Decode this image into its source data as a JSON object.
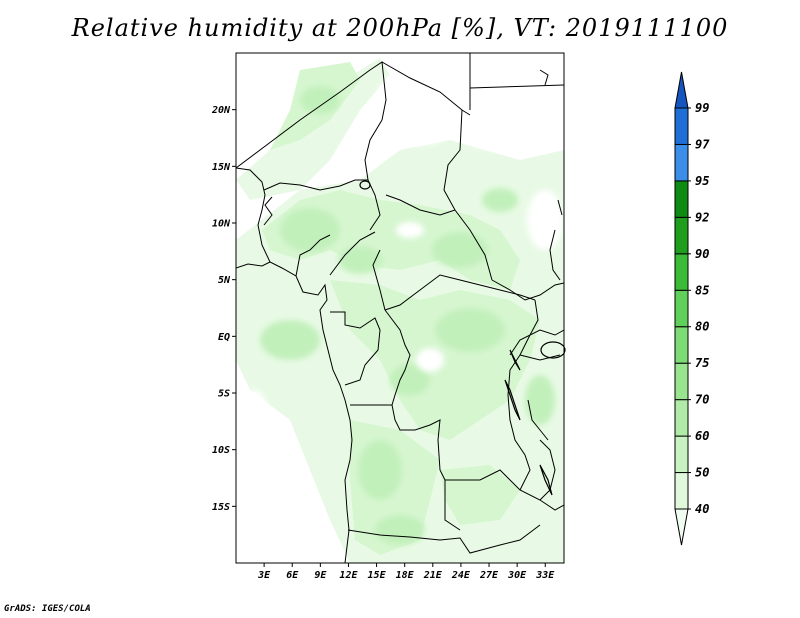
{
  "title": "Relative humidity at 200hPa [%], VT: 2019111100",
  "credit": "GrADS: IGES/COLA",
  "map": {
    "lon_range": [
      0,
      35
    ],
    "lat_range": [
      -20,
      25
    ],
    "lat_ticks": [
      {
        "value": 20,
        "label": "20N"
      },
      {
        "value": 15,
        "label": "15N"
      },
      {
        "value": 10,
        "label": "10N"
      },
      {
        "value": 5,
        "label": "5N"
      },
      {
        "value": 0,
        "label": "EQ"
      },
      {
        "value": -5,
        "label": "5S"
      },
      {
        "value": -10,
        "label": "10S"
      },
      {
        "value": -15,
        "label": "15S"
      }
    ],
    "lon_ticks": [
      {
        "value": 3,
        "label": "3E"
      },
      {
        "value": 6,
        "label": "6E"
      },
      {
        "value": 9,
        "label": "9E"
      },
      {
        "value": 12,
        "label": "12E"
      },
      {
        "value": 15,
        "label": "15E"
      },
      {
        "value": 18,
        "label": "18E"
      },
      {
        "value": 21,
        "label": "21E"
      },
      {
        "value": 24,
        "label": "24E"
      },
      {
        "value": 27,
        "label": "27E"
      },
      {
        "value": 30,
        "label": "30E"
      },
      {
        "value": 33,
        "label": "33E"
      }
    ]
  },
  "colorbar": {
    "levels": [
      "40",
      "50",
      "60",
      "70",
      "75",
      "80",
      "85",
      "90",
      "92",
      "95",
      "97",
      "99"
    ],
    "colors": [
      "#f0fcef",
      "#e0f8dc",
      "#c8f2c2",
      "#b0eca8",
      "#98e48f",
      "#7edc76",
      "#60d05a",
      "#3cbb38",
      "#1f9e1e",
      "#0f8a12",
      "#3c8ee8",
      "#1f6fd6",
      "#1455c0"
    ]
  },
  "colors": {
    "map_border": "#000000",
    "humid_40": "#f0fcef",
    "humid_50": "#e0f8dc",
    "humid_60": "#c8f2c2"
  }
}
